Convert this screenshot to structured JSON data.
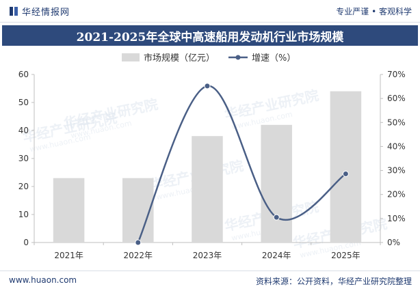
{
  "header": {
    "brand": "华经情报网",
    "slogan": "专业严谨 • 客观科学"
  },
  "title": "2021-2025年全球中高速船用发动机行业市场规模",
  "footer": {
    "url": "www.huaon.com",
    "source": "资料来源：公开资料，华经产业研究院整理"
  },
  "watermark": {
    "text": "华经产业研究院",
    "url": "www.huaon.com"
  },
  "colors": {
    "bar": "#d9d9d9",
    "line": "#4a5f86",
    "title_bg": "#2e4a7c",
    "brand": "#1f3a70"
  },
  "chart_data": {
    "type": "bar",
    "categories": [
      "2021年",
      "2022年",
      "2023年",
      "2024年",
      "2025年"
    ],
    "series": [
      {
        "name": "市场规模（亿元）",
        "type": "bar",
        "axis": "left",
        "values": [
          23,
          23,
          38,
          42,
          54
        ]
      },
      {
        "name": "增速（%）",
        "type": "line",
        "axis": "right",
        "smooth": true,
        "values": [
          null,
          0.0,
          65.2,
          10.5,
          28.6
        ]
      }
    ],
    "y_left": {
      "min": 0,
      "max": 60,
      "ticks": [
        0,
        10,
        20,
        30,
        40,
        50,
        60
      ]
    },
    "y_right": {
      "min": 0,
      "max": 70,
      "ticks": [
        "0%",
        "10%",
        "20%",
        "30%",
        "40%",
        "50%",
        "60%",
        "70%"
      ]
    },
    "legend": "top-center",
    "grid": false
  }
}
